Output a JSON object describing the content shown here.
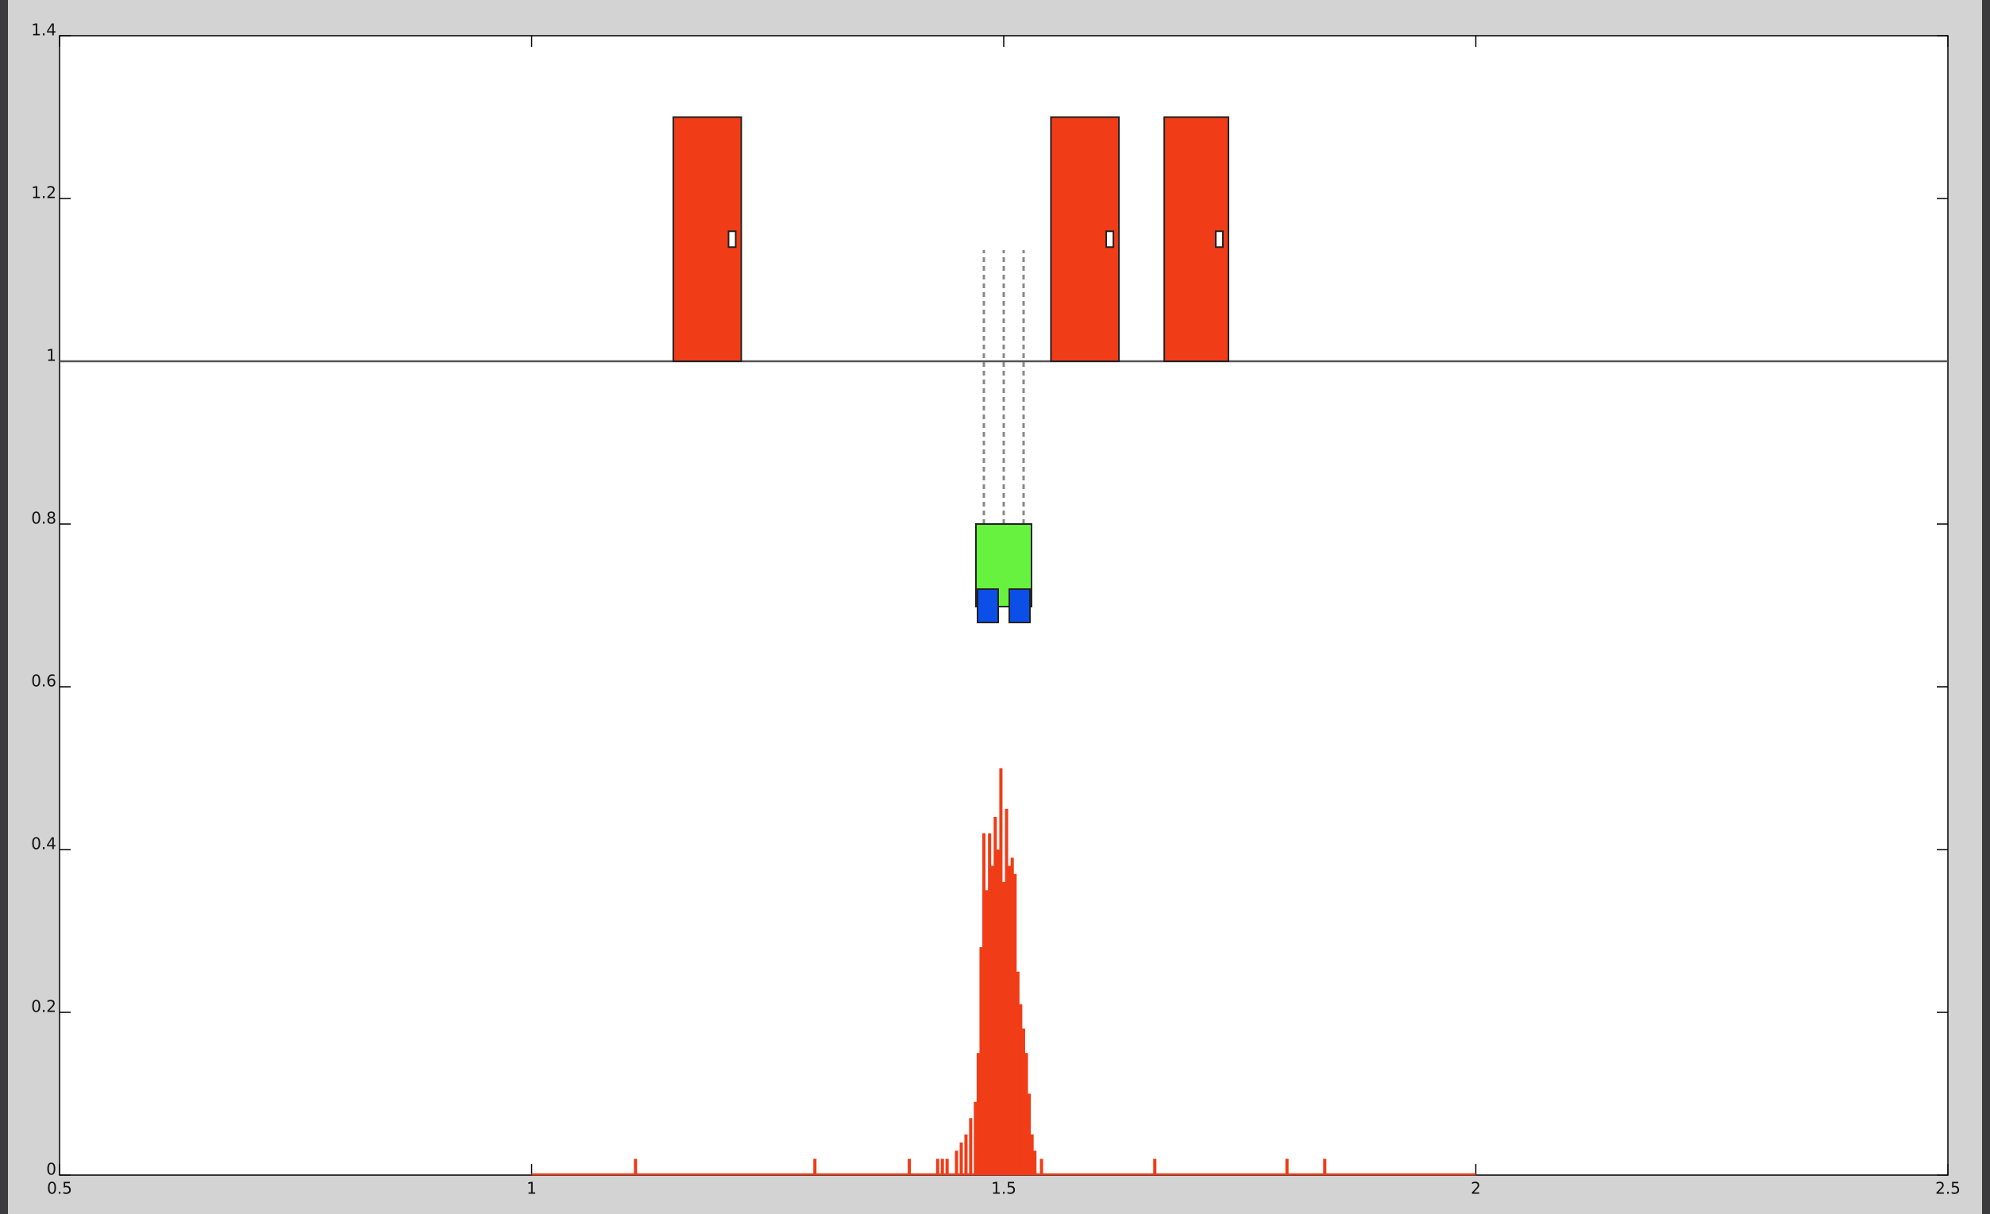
{
  "chart_data": {
    "type": "stem",
    "color": "#f03c17",
    "xlim": [
      0.5,
      2.5
    ],
    "ylim": [
      0,
      1.4
    ],
    "xticks": [
      0.5,
      1,
      1.5,
      2,
      2.5
    ],
    "yticks": [
      0,
      0.2,
      0.4,
      0.6,
      0.8,
      1,
      1.2,
      1.4
    ],
    "x": [
      1.0,
      1.11,
      1.3,
      1.4,
      1.43,
      1.435,
      1.44,
      1.45,
      1.455,
      1.46,
      1.465,
      1.47,
      1.473,
      1.476,
      1.479,
      1.482,
      1.485,
      1.488,
      1.491,
      1.494,
      1.497,
      1.5,
      1.503,
      1.506,
      1.509,
      1.512,
      1.515,
      1.518,
      1.521,
      1.524,
      1.527,
      1.53,
      1.533,
      1.54,
      1.66,
      1.8,
      1.84,
      2.0
    ],
    "values": [
      0,
      0.02,
      0.02,
      0.02,
      0.02,
      0.02,
      0.02,
      0.03,
      0.04,
      0.05,
      0.07,
      0.09,
      0.15,
      0.28,
      0.42,
      0.35,
      0.42,
      0.38,
      0.44,
      0.4,
      0.5,
      0.36,
      0.45,
      0.38,
      0.39,
      0.37,
      0.25,
      0.21,
      0.18,
      0.15,
      0.1,
      0.05,
      0.03,
      0.02,
      0.02,
      0.02,
      0.02,
      0
    ],
    "wall": 1,
    "doors": [
      {
        "x": [
          1.15,
          1.222
        ],
        "y": [
          1,
          1.3
        ]
      },
      {
        "x": [
          1.55,
          1.622
        ],
        "y": [
          1,
          1.3
        ]
      },
      {
        "x": [
          1.67,
          1.738
        ],
        "y": [
          1,
          1.3
        ]
      }
    ],
    "robot": {
      "x": 1.5,
      "y": 0.8
    }
  }
}
